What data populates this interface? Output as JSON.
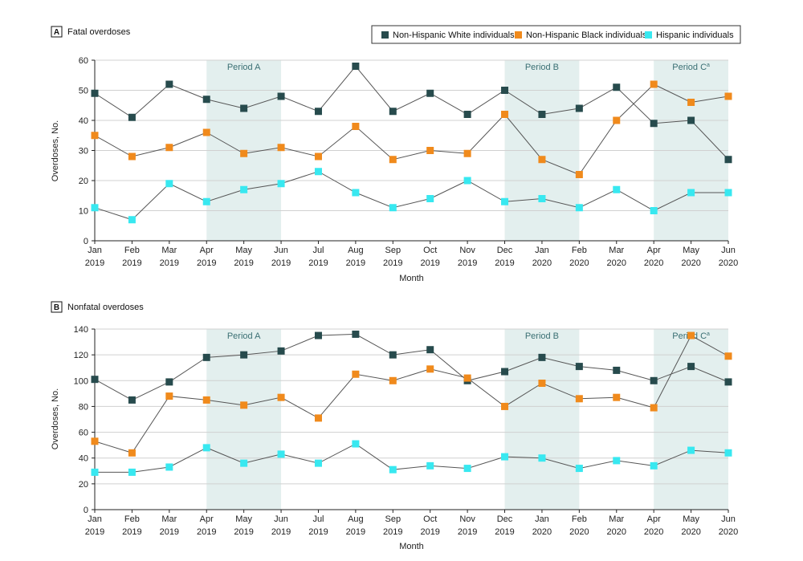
{
  "colors": {
    "white": "#274b4d",
    "black": "#f08a1c",
    "hispanic": "#38e8f0",
    "period": "#e3efee",
    "grid": "#d0d0d0",
    "line": "#555555"
  },
  "legend": {
    "items": [
      {
        "label": "Non-Hispanic White individuals",
        "color_key": "white"
      },
      {
        "label": "Non-Hispanic Black individuals",
        "color_key": "black"
      },
      {
        "label": "Hispanic individuals",
        "color_key": "hispanic"
      }
    ]
  },
  "chart_data": [
    {
      "type": "line",
      "letter": "A",
      "title": "Fatal overdoses",
      "ylabel": "Overdoses, No.",
      "xlabel": "Month",
      "ylim": [
        0,
        60
      ],
      "yticks": [
        0,
        10,
        20,
        30,
        40,
        50,
        60
      ],
      "grid": true,
      "categories": [
        [
          "Jan",
          "2019"
        ],
        [
          "Feb",
          "2019"
        ],
        [
          "Mar",
          "2019"
        ],
        [
          "Apr",
          "2019"
        ],
        [
          "May",
          "2019"
        ],
        [
          "Jun",
          "2019"
        ],
        [
          "Jul",
          "2019"
        ],
        [
          "Aug",
          "2019"
        ],
        [
          "Sep",
          "2019"
        ],
        [
          "Oct",
          "2019"
        ],
        [
          "Nov",
          "2019"
        ],
        [
          "Dec",
          "2019"
        ],
        [
          "Jan",
          "2020"
        ],
        [
          "Feb",
          "2020"
        ],
        [
          "Mar",
          "2020"
        ],
        [
          "Apr",
          "2020"
        ],
        [
          "May",
          "2020"
        ],
        [
          "Jun",
          "2020"
        ]
      ],
      "periods": [
        {
          "label": "Period A",
          "start": 3,
          "end": 5
        },
        {
          "label": "Period B",
          "start": 11,
          "end": 13
        },
        {
          "label": "Period C",
          "sup": "a",
          "start": 15,
          "end": 17
        }
      ],
      "series": [
        {
          "name": "Non-Hispanic White individuals",
          "color_key": "white",
          "values": [
            49,
            41,
            52,
            47,
            44,
            48,
            43,
            58,
            43,
            49,
            42,
            50,
            42,
            44,
            51,
            39,
            40,
            27
          ]
        },
        {
          "name": "Non-Hispanic Black individuals",
          "color_key": "black",
          "values": [
            35,
            28,
            31,
            36,
            29,
            31,
            28,
            38,
            27,
            30,
            29,
            42,
            27,
            22,
            40,
            52,
            46,
            48
          ]
        },
        {
          "name": "Hispanic individuals",
          "color_key": "hispanic",
          "values": [
            11,
            7,
            19,
            13,
            17,
            19,
            23,
            16,
            11,
            14,
            20,
            13,
            14,
            11,
            17,
            10,
            16,
            16
          ]
        }
      ]
    },
    {
      "type": "line",
      "letter": "B",
      "title": "Nonfatal overdoses",
      "ylabel": "Overdoses, No.",
      "xlabel": "Month",
      "ylim": [
        0,
        140
      ],
      "yticks": [
        0,
        20,
        40,
        60,
        80,
        100,
        120,
        140
      ],
      "grid": true,
      "categories": [
        [
          "Jan",
          "2019"
        ],
        [
          "Feb",
          "2019"
        ],
        [
          "Mar",
          "2019"
        ],
        [
          "Apr",
          "2019"
        ],
        [
          "May",
          "2019"
        ],
        [
          "Jun",
          "2019"
        ],
        [
          "Jul",
          "2019"
        ],
        [
          "Aug",
          "2019"
        ],
        [
          "Sep",
          "2019"
        ],
        [
          "Oct",
          "2019"
        ],
        [
          "Nov",
          "2019"
        ],
        [
          "Dec",
          "2019"
        ],
        [
          "Jan",
          "2020"
        ],
        [
          "Feb",
          "2020"
        ],
        [
          "Mar",
          "2020"
        ],
        [
          "Apr",
          "2020"
        ],
        [
          "May",
          "2020"
        ],
        [
          "Jun",
          "2020"
        ]
      ],
      "periods": [
        {
          "label": "Period A",
          "start": 3,
          "end": 5
        },
        {
          "label": "Period B",
          "start": 11,
          "end": 13
        },
        {
          "label": "Period C",
          "sup": "a",
          "start": 15,
          "end": 17
        }
      ],
      "series": [
        {
          "name": "Non-Hispanic White individuals",
          "color_key": "white",
          "values": [
            101,
            85,
            99,
            118,
            120,
            123,
            135,
            136,
            120,
            124,
            100,
            107,
            118,
            111,
            108,
            100,
            111,
            99
          ]
        },
        {
          "name": "Non-Hispanic Black individuals",
          "color_key": "black",
          "values": [
            53,
            44,
            88,
            85,
            81,
            87,
            71,
            105,
            100,
            109,
            102,
            80,
            98,
            86,
            87,
            79,
            135,
            119
          ]
        },
        {
          "name": "Hispanic individuals",
          "color_key": "hispanic",
          "values": [
            29,
            29,
            33,
            48,
            36,
            43,
            36,
            51,
            31,
            34,
            32,
            41,
            40,
            32,
            38,
            34,
            46,
            44
          ]
        }
      ]
    }
  ]
}
